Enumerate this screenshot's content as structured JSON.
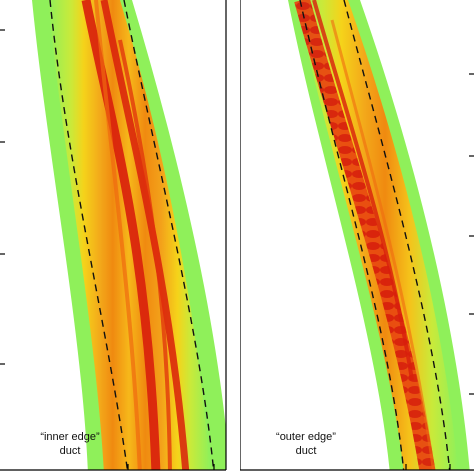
{
  "panels": [
    {
      "caption_line1": "“inner edge”",
      "caption_line2": "duct"
    },
    {
      "caption_line1": "“outer edge”",
      "caption_line2": "duct"
    }
  ],
  "colors": {
    "background": "#ffffff",
    "field_low": "#8ff05a",
    "field_mid": "#f5d31a",
    "field_high": "#f08a10",
    "field_peak": "#d81e0c",
    "duct_line": "#111111",
    "axis": "#000000"
  }
}
